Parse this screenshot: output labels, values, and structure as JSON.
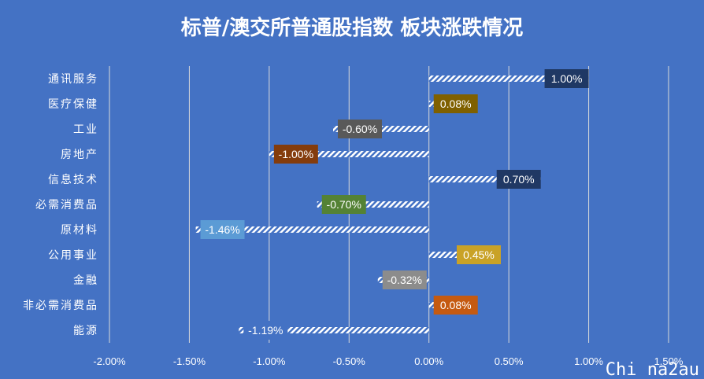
{
  "chart_data": {
    "type": "bar",
    "orientation": "horizontal",
    "title": "标普/澳交所普通股指数 板块涨跌情况",
    "categories": [
      "通讯服务",
      "医疗保健",
      "工业",
      "房地产",
      "信息技术",
      "必需消费品",
      "原材料",
      "公用事业",
      "金融",
      "非必需消费品",
      "能源"
    ],
    "values": [
      1.0,
      0.08,
      -0.6,
      -1.0,
      0.7,
      -0.7,
      -1.46,
      0.45,
      -0.32,
      0.08,
      -1.19
    ],
    "data_labels": [
      "1.00%",
      "0.08%",
      "-0.60%",
      "-1.00%",
      "0.70%",
      "-0.70%",
      "-1.46%",
      "0.45%",
      "-0.32%",
      "0.08%",
      "-1.19%"
    ],
    "label_colors": [
      "#1F3864",
      "#7F6000",
      "#595959",
      "#843C0C",
      "#203864",
      "#548235",
      "#5B9BD5",
      "#C9A227",
      "#8C8C8C",
      "#C55A11",
      "#4472C4"
    ],
    "xlim": [
      -2.0,
      1.5
    ],
    "xticks": [
      -2.0,
      -1.5,
      -1.0,
      -0.5,
      0.0,
      0.5,
      1.0,
      1.5
    ],
    "xtick_labels": [
      "-2.00%",
      "-1.50%",
      "-1.00%",
      "-0.50%",
      "0.00%",
      "0.50%",
      "1.00%",
      "1.50%"
    ],
    "grid": true,
    "bar_pattern": "diagonal-hatch-white",
    "background": "#4472C4"
  },
  "watermark": "Chi na2au"
}
